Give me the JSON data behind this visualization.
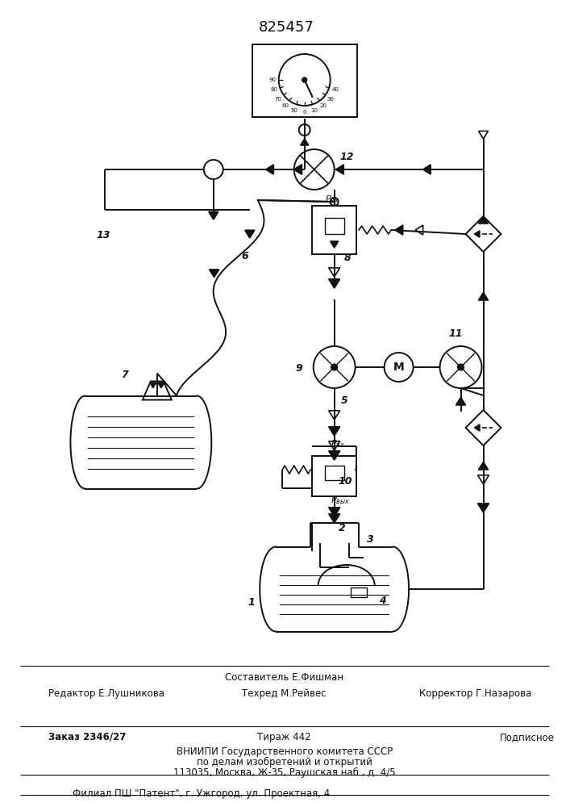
{
  "title": "825457",
  "bg": "#ffffff",
  "lc": "#111111",
  "footer": {
    "editor": "Редактор Е.Лушникова",
    "composer": "Составитель Е.Фишман",
    "techred": "Техред М.Рейвес",
    "corrector": "Корректор Г.Назарова",
    "order": "Заказ 2346/27",
    "tirazh": "Тираж 442",
    "podpisnoe": "Подписное",
    "vniip1": "ВНИИПИ Государственного комитета СССР",
    "vniip2": "по делам изобретений и открытий",
    "vniip3": "113035, Москва, Ж-35, Раушская наб., д. 4/5",
    "filial": "Филиал ПШ \"Патент\", г. Ужгород, ул. Проектная, 4"
  }
}
